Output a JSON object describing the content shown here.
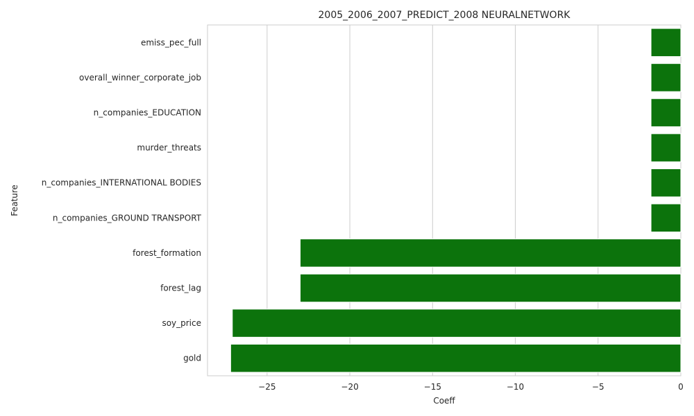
{
  "chart_data": {
    "type": "bar",
    "orientation": "horizontal",
    "title": "2005_2006_2007_PREDICT_2008 NEURALNETWORK",
    "xlabel": "Coeff",
    "ylabel": "Feature",
    "categories": [
      "emiss_pec_full",
      "overall_winner_corporate_job",
      "n_companies_EDUCATION",
      "murder_threats",
      "n_companies_INTERNATIONAL BODIES",
      "n_companies_GROUND TRANSPORT",
      "forest_formation",
      "forest_lag",
      "soy_price",
      "gold"
    ],
    "values": [
      -1.8,
      -1.8,
      -1.8,
      -1.8,
      -1.8,
      -1.8,
      -23.0,
      -23.0,
      -27.1,
      -27.2
    ],
    "xlim": [
      -28.6,
      0
    ],
    "xticks": [
      -25,
      -20,
      -15,
      -10,
      -5,
      0
    ],
    "xtick_labels": [
      "−25",
      "−20",
      "−15",
      "−10",
      "−5",
      "0"
    ],
    "grid": "vertical",
    "bar_color": "#0c730c"
  }
}
